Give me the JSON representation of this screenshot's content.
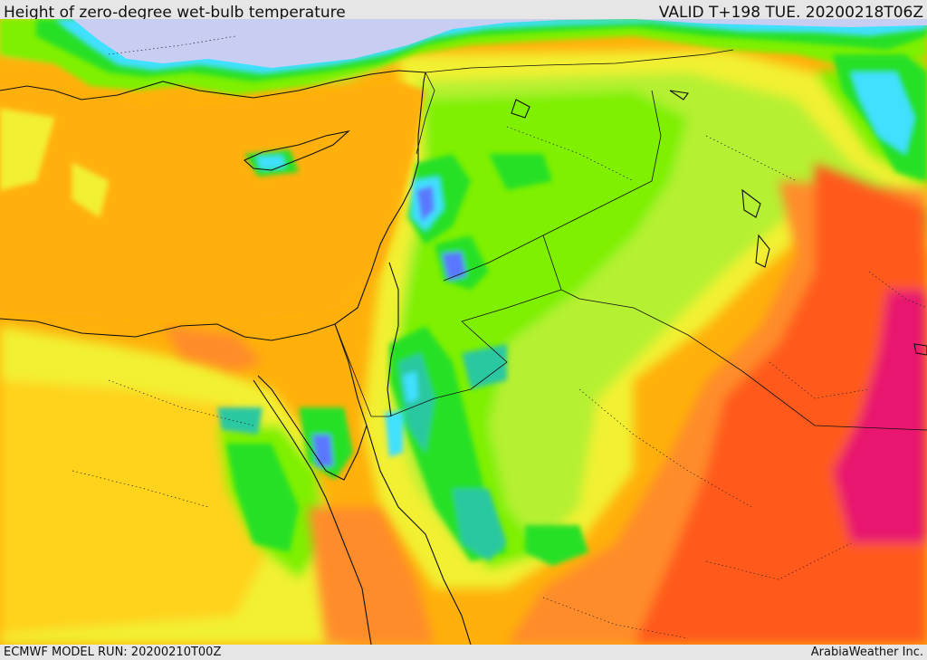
{
  "header": {
    "title": "Height of zero-degree wet-bulb temperature",
    "valid": "VALID T+198 TUE. 20200218T06Z"
  },
  "footer": {
    "model_run": "ECMWF MODEL RUN: 20200210T00Z",
    "credit": "ArabiaWeather Inc."
  },
  "colors": {
    "sea_cold": "#c8cdf2",
    "orange_sea": "#ffb00a",
    "orange_deep": "#ff8c2a",
    "red": "#ff5a1a",
    "magenta": "#e8186e",
    "yellow": "#f2f032",
    "yellow_green": "#b6f032",
    "green": "#7ef000",
    "bright_green": "#28e028",
    "teal": "#2cc8a0",
    "cyan": "#40e0ff",
    "blue": "#5a78ff",
    "purple": "#8c78e6"
  }
}
